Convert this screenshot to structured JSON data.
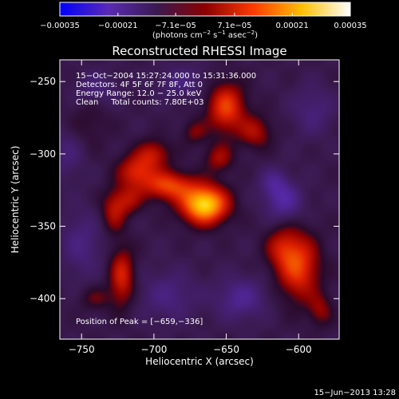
{
  "chart_data": {
    "type": "heatmap",
    "title": "Reconstructed RHESSI Image",
    "xlabel": "Heliocentric X (arcsec)",
    "ylabel": "Heliocentric Y (arcsec)",
    "xlim": [
      -765,
      -572
    ],
    "ylim": [
      -428,
      -235
    ],
    "x_ticks": [
      -750,
      -700,
      -650,
      -600
    ],
    "y_ticks": [
      -250,
      -300,
      -350,
      -400
    ],
    "x_tick_labels": [
      "−750",
      "−700",
      "−650",
      "−600"
    ],
    "y_tick_labels": [
      "−250",
      "−300",
      "−350",
      "−400"
    ],
    "colorbar": {
      "range": [
        -0.00035,
        0.00035
      ],
      "tick_values": [
        -0.00035,
        -0.00021,
        -7.1e-05,
        7.1e-05,
        0.00021,
        0.00035
      ],
      "tick_labels": [
        "−0.00035",
        "−0.00021",
        "−7.1e−05",
        "7.1e−05",
        "0.00021",
        "0.00035"
      ],
      "unit_text": "(photons cm",
      "unit_sup1": "−2",
      "unit_mid": " s",
      "unit_sup2": "−1",
      "unit_tail": " asec",
      "unit_sup3": "−2",
      "unit_close": ")",
      "colors": [
        "#0000ff",
        "#5a2ab4",
        "#3a1a50",
        "#8a0000",
        "#ff3a00",
        "#ffc000",
        "#ffffff"
      ]
    },
    "annotations": [
      "15−Oct−2004 15:27:24.000 to 15:31:36.000",
      "Detectors: 4F 5F 6F 7F 8F, Att 0",
      "Energy Range: 12.0 − 25.0 keV",
      "Clean     Total counts: 7.80E+03"
    ],
    "peak_label": "Position of Peak = [−659,−336]",
    "peak": [
      -659,
      -336
    ],
    "sources": [
      {
        "x": -665,
        "y": -335,
        "amp": 1.0,
        "sx": 11,
        "sy": 9
      },
      {
        "x": -690,
        "y": -322,
        "amp": 0.55,
        "sx": 12,
        "sy": 7
      },
      {
        "x": -712,
        "y": -312,
        "amp": 0.45,
        "sx": 9,
        "sy": 8
      },
      {
        "x": -700,
        "y": -300,
        "amp": 0.35,
        "sx": 8,
        "sy": 7
      },
      {
        "x": -718,
        "y": -332,
        "amp": 0.3,
        "sx": 7,
        "sy": 7
      },
      {
        "x": -728,
        "y": -340,
        "amp": 0.32,
        "sx": 6,
        "sy": 10
      },
      {
        "x": -722,
        "y": -385,
        "amp": 0.45,
        "sx": 6,
        "sy": 14
      },
      {
        "x": -740,
        "y": -400,
        "amp": 0.18,
        "sx": 8,
        "sy": 6
      },
      {
        "x": -650,
        "y": -268,
        "amp": 0.55,
        "sx": 9,
        "sy": 12
      },
      {
        "x": -630,
        "y": -285,
        "amp": 0.32,
        "sx": 8,
        "sy": 8
      },
      {
        "x": -655,
        "y": -303,
        "amp": 0.3,
        "sx": 7,
        "sy": 7
      },
      {
        "x": -600,
        "y": -378,
        "amp": 0.55,
        "sx": 10,
        "sy": 16
      },
      {
        "x": -612,
        "y": -365,
        "amp": 0.3,
        "sx": 8,
        "sy": 10
      },
      {
        "x": -585,
        "y": -408,
        "amp": 0.25,
        "sx": 6,
        "sy": 8
      },
      {
        "x": -745,
        "y": -278,
        "amp": 0.12,
        "sx": 10,
        "sy": 12
      },
      {
        "x": -672,
        "y": -285,
        "amp": 0.22,
        "sx": 6,
        "sy": 6
      },
      {
        "x": -610,
        "y": -333,
        "amp": -0.35,
        "sx": 9,
        "sy": 9
      },
      {
        "x": -617,
        "y": -320,
        "amp": -0.25,
        "sx": 7,
        "sy": 7
      },
      {
        "x": -640,
        "y": -400,
        "amp": -0.3,
        "sx": 12,
        "sy": 10
      },
      {
        "x": -690,
        "y": -398,
        "amp": -0.22,
        "sx": 14,
        "sy": 12
      },
      {
        "x": -750,
        "y": -362,
        "amp": -0.22,
        "sx": 10,
        "sy": 16
      },
      {
        "x": -740,
        "y": -255,
        "amp": -0.2,
        "sx": 10,
        "sy": 8
      },
      {
        "x": -680,
        "y": -250,
        "amp": -0.2,
        "sx": 12,
        "sy": 8
      },
      {
        "x": -590,
        "y": -270,
        "amp": -0.2,
        "sx": 10,
        "sy": 12
      },
      {
        "x": -760,
        "y": -300,
        "amp": -0.18,
        "sx": 8,
        "sy": 12
      }
    ]
  },
  "footer": {
    "timestamp": "15−Jun−2013 13:28"
  }
}
